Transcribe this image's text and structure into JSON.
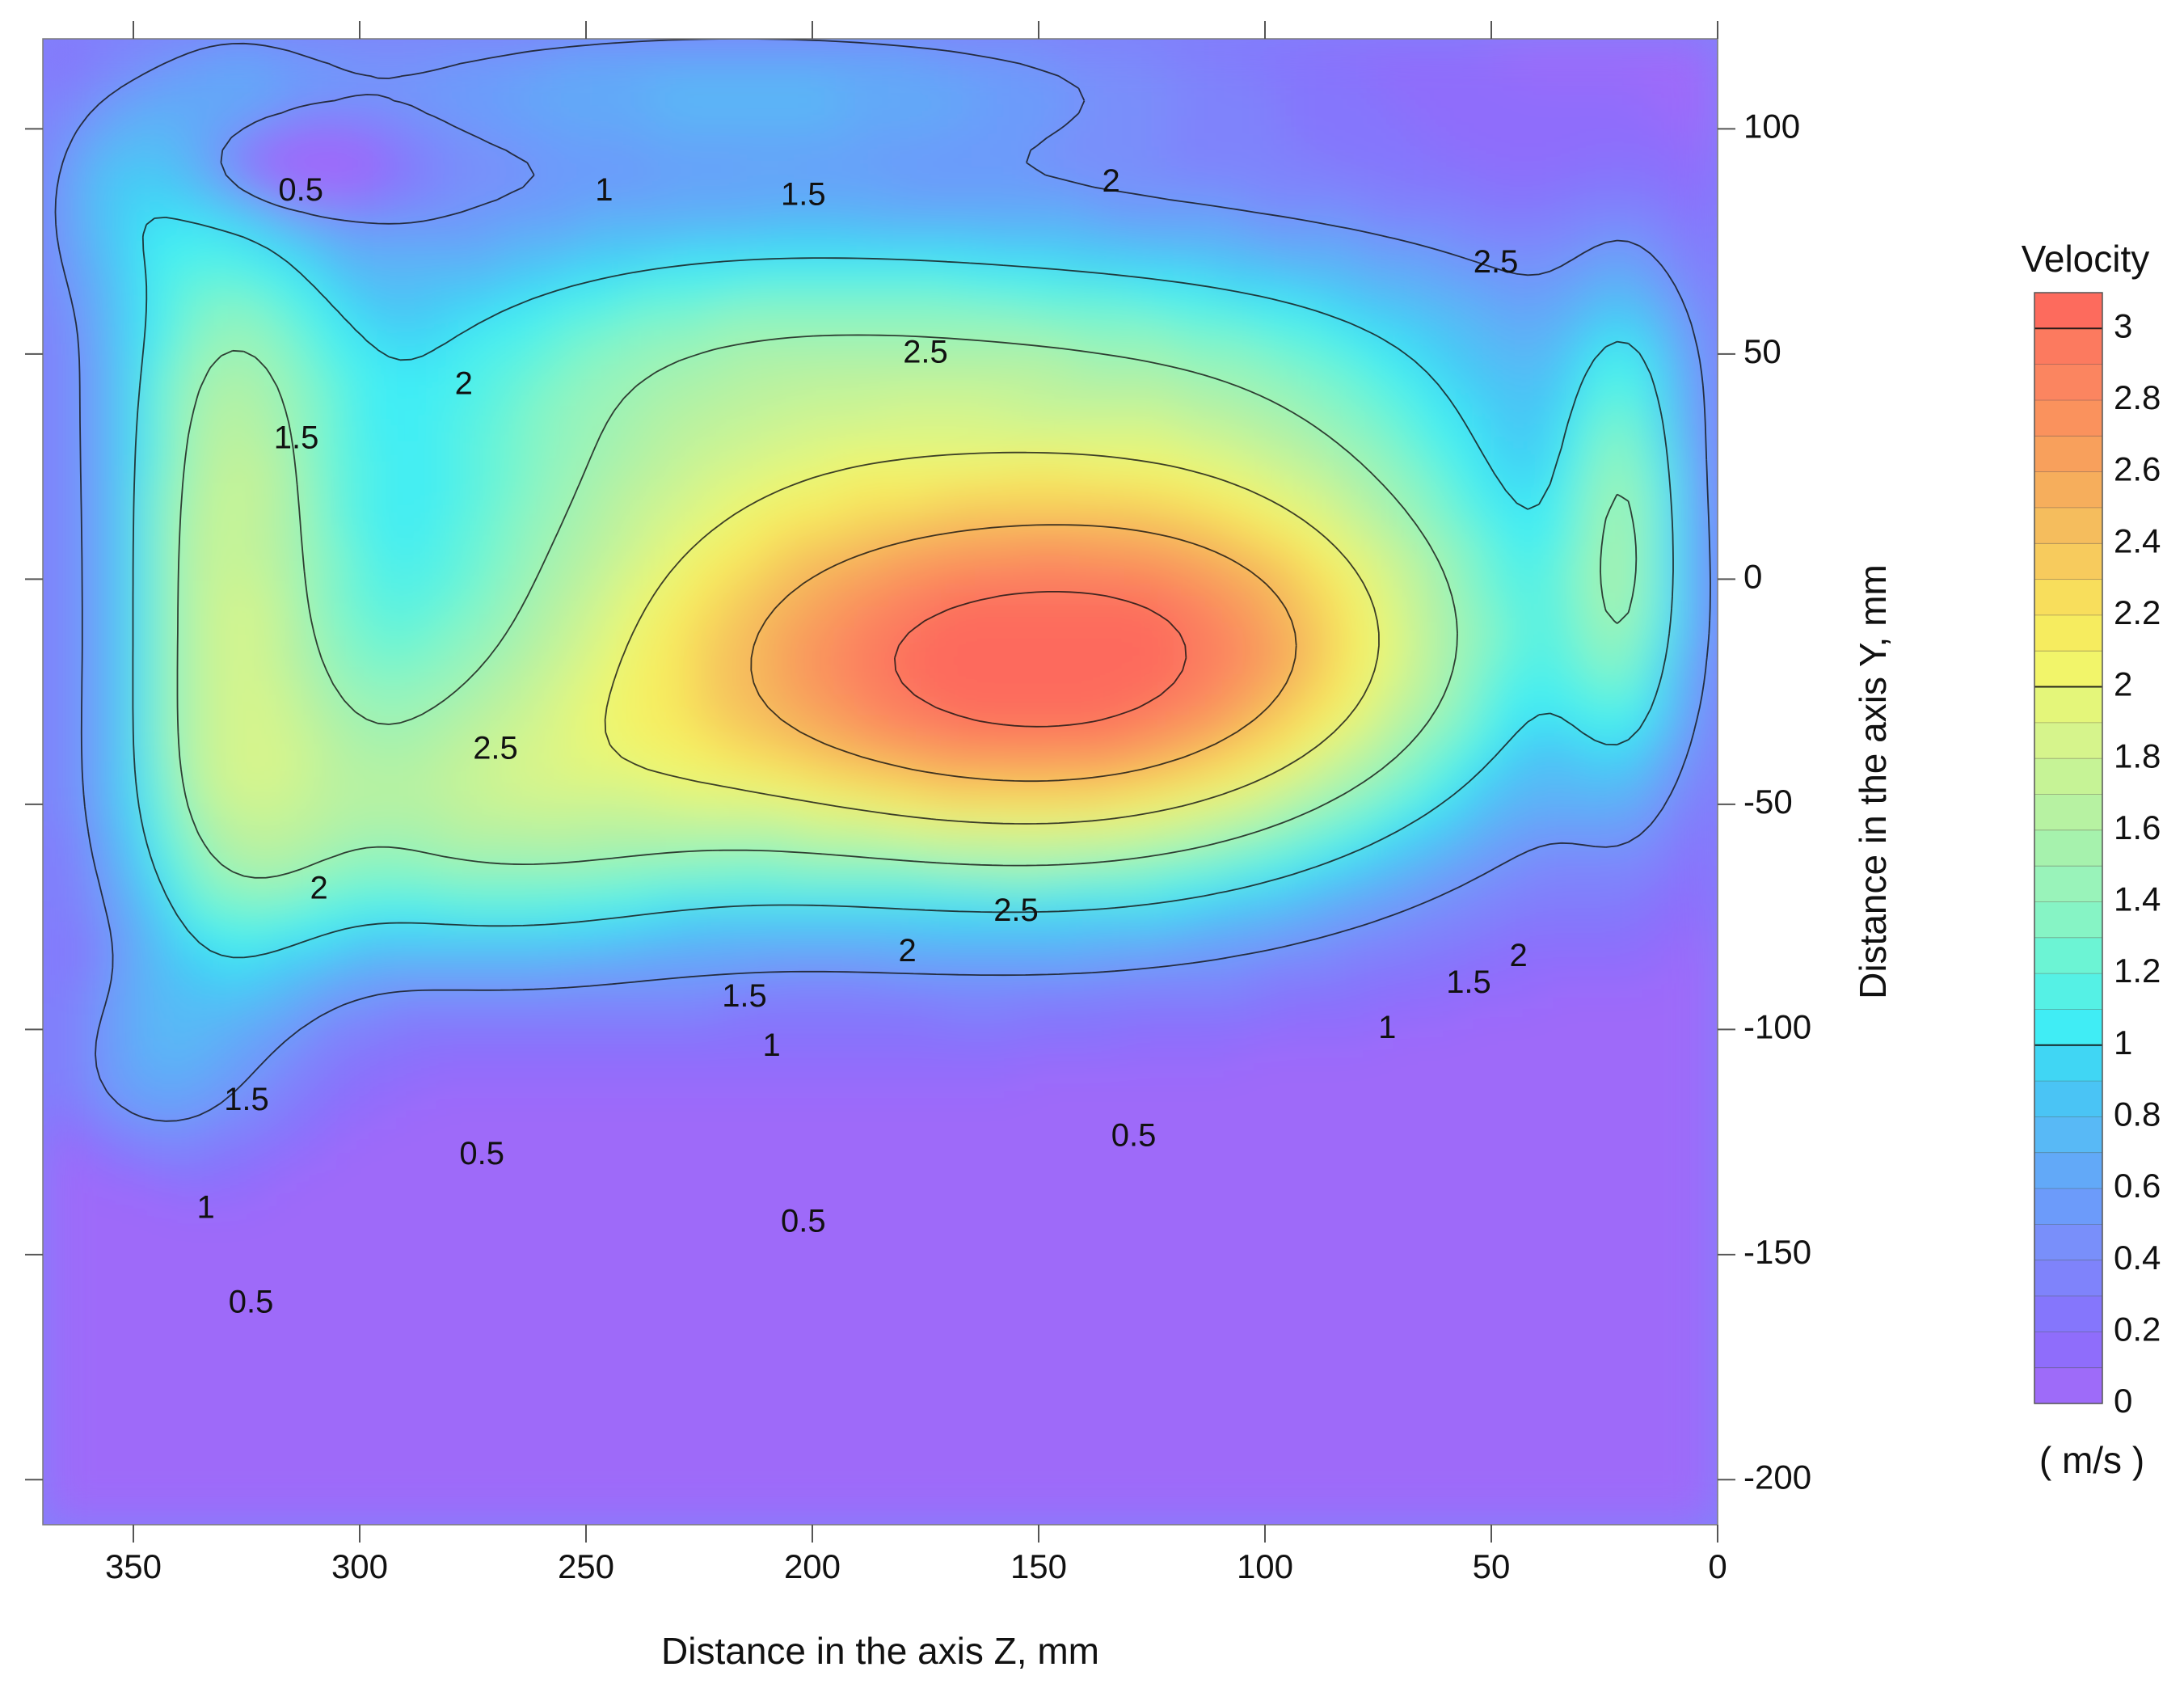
{
  "chart_data": {
    "type": "contour",
    "xlabel": "Distance in the axis Z, mm",
    "ylabel": "Distance in the axis Y, mm",
    "xlim": [
      370,
      0
    ],
    "ylim": [
      -210,
      120
    ],
    "x_direction": "reversed",
    "x_ticks": [
      350,
      300,
      250,
      200,
      150,
      100,
      50,
      0
    ],
    "x_tick_labels": [
      "350",
      "300",
      "250",
      "200",
      "150",
      "100",
      "50",
      "0"
    ],
    "y_ticks": [
      100,
      50,
      0,
      -50,
      -100,
      -150,
      -200
    ],
    "y_tick_labels": [
      "100",
      "50",
      "0",
      "-50",
      "-100",
      "-150",
      "-200"
    ],
    "y_axis_side": "right",
    "colorbar": {
      "title": "Velocity",
      "unit": "( m/s )",
      "min": 0,
      "max": 3.1,
      "step": 0.1,
      "tick_values": [
        0,
        0.2,
        0.4,
        0.6,
        0.8,
        1,
        1.2,
        1.4,
        1.6,
        1.8,
        2,
        2.2,
        2.4,
        2.6,
        2.8,
        3
      ],
      "tick_labels": [
        "0",
        "0.2",
        "0.4",
        "0.6",
        "0.8",
        "1",
        "1.2",
        "1.4",
        "1.6",
        "1.8",
        "2",
        "2.2",
        "2.4",
        "2.6",
        "2.8",
        "3"
      ],
      "major_lines": [
        1,
        2,
        3
      ],
      "colors": [
        "#9e6bf9",
        "#8f6dfb",
        "#8576fc",
        "#7f83fb",
        "#798ffa",
        "#6c9bfa",
        "#62a9f8",
        "#58b9f6",
        "#4ac4f5",
        "#40d6f4",
        "#40edf5",
        "#55f1e5",
        "#6cf4d4",
        "#86f4c5",
        "#99f3ba",
        "#a6f2ad",
        "#b7f2a2",
        "#c6f396",
        "#d6f48c",
        "#e4f67a",
        "#f2f56a",
        "#f6ec5f",
        "#f8de5c",
        "#f7cb5d",
        "#f5bd5d",
        "#f6ae5c",
        "#f8a05c",
        "#fa925d",
        "#fb8560",
        "#fc7a5f",
        "#fd6b5d"
      ]
    },
    "contour_labels": [
      {
        "text": "0.5",
        "z": 313,
        "y": 86
      },
      {
        "text": "1",
        "z": 246,
        "y": 86
      },
      {
        "text": "1.5",
        "z": 202,
        "y": 85
      },
      {
        "text": "2",
        "z": 134,
        "y": 88
      },
      {
        "text": "2.5",
        "z": 49,
        "y": 70
      },
      {
        "text": "2.5",
        "z": 175,
        "y": 50
      },
      {
        "text": "2",
        "z": 277,
        "y": 43
      },
      {
        "text": "1.5",
        "z": 314,
        "y": 31
      },
      {
        "text": "2.5",
        "z": 270,
        "y": -38
      },
      {
        "text": "2",
        "z": 309,
        "y": -69
      },
      {
        "text": "2.5",
        "z": 155,
        "y": -74
      },
      {
        "text": "2",
        "z": 179,
        "y": -83
      },
      {
        "text": "1.5",
        "z": 215,
        "y": -93
      },
      {
        "text": "1",
        "z": 209,
        "y": -104
      },
      {
        "text": "1",
        "z": 73,
        "y": -100
      },
      {
        "text": "1.5",
        "z": 55,
        "y": -90
      },
      {
        "text": "2",
        "z": 44,
        "y": -84
      },
      {
        "text": "0.5",
        "z": 129,
        "y": -124
      },
      {
        "text": "1.5",
        "z": 325,
        "y": -116
      },
      {
        "text": "0.5",
        "z": 273,
        "y": -128
      },
      {
        "text": "0.5",
        "z": 202,
        "y": -143
      },
      {
        "text": "1",
        "z": 334,
        "y": -140
      },
      {
        "text": "0.5",
        "z": 324,
        "y": -161
      }
    ],
    "grid": false
  }
}
